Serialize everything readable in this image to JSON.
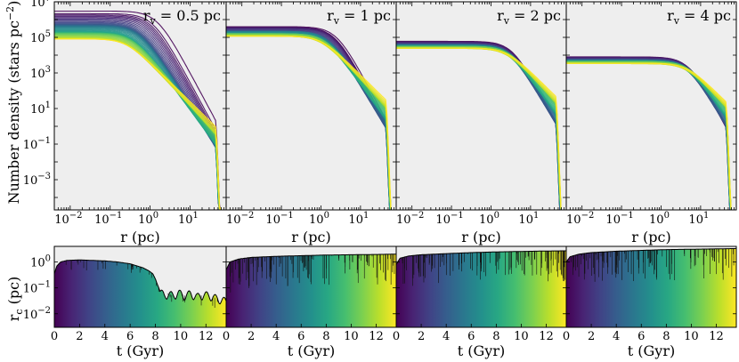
{
  "figure": {
    "top_ylabel": "Number density (stars pc",
    "top_ylabel_sup": "−2",
    "top_ylabel_end": ")",
    "bottom_ylabel": "r",
    "bottom_ylabel_sub": "c",
    "bottom_ylabel_end": " (pc)"
  },
  "chart_data": [
    {
      "type": "line",
      "panel": "top",
      "title_base": "r",
      "title_sub": "v",
      "title_value": " = 0.5 pc",
      "xlabel": "r (pc)",
      "xscale": "log",
      "xlim": [
        0.004,
        80
      ],
      "yscale": "log",
      "ylim": [
        2e-05,
        10000000
      ],
      "xticks": [
        {
          "v": 0.01,
          "b": "10",
          "e": "−2"
        },
        {
          "v": 0.1,
          "b": "10",
          "e": "−1"
        },
        {
          "v": 1,
          "b": "10",
          "e": "0"
        },
        {
          "v": 10,
          "b": "10",
          "e": "1"
        }
      ],
      "yticks": [
        {
          "v": 0.001,
          "b": "10",
          "e": "−3"
        },
        {
          "v": 0.1,
          "b": "10",
          "e": "−1"
        },
        {
          "v": 10,
          "b": "10",
          "e": "1"
        },
        {
          "v": 1000,
          "b": "10",
          "e": "3"
        },
        {
          "v": 100000,
          "b": "10",
          "e": "5"
        },
        {
          "v": 10000000,
          "b": "10",
          "e": "7"
        }
      ],
      "series_summary": {
        "colormap": "viridis",
        "early_core_density": 3000000,
        "late_core_density": 80000,
        "early_core_radius_pc": 1.5,
        "late_core_radius_pc": 0.25,
        "tidal_radius_pc": 55
      }
    },
    {
      "type": "line",
      "panel": "top",
      "title_base": "r",
      "title_sub": "v",
      "title_value": " = 1 pc",
      "xlabel": "r (pc)",
      "xscale": "log",
      "xlim": [
        0.004,
        80
      ],
      "yscale": "log",
      "ylim": [
        2e-05,
        10000000
      ],
      "xticks": [
        {
          "v": 0.01,
          "b": "10",
          "e": "−2"
        },
        {
          "v": 0.1,
          "b": "10",
          "e": "−1"
        },
        {
          "v": 1,
          "b": "10",
          "e": "0"
        },
        {
          "v": 10,
          "b": "10",
          "e": "1"
        }
      ],
      "yticks": [
        {
          "v": 0.001
        },
        {
          "v": 0.1
        },
        {
          "v": 10
        },
        {
          "v": 1000
        },
        {
          "v": 100000
        },
        {
          "v": 10000000
        }
      ],
      "series_summary": {
        "colormap": "viridis",
        "early_core_density": 400000,
        "late_core_density": 120000,
        "early_core_radius_pc": 2.5,
        "late_core_radius_pc": 1.0,
        "tidal_radius_pc": 55
      }
    },
    {
      "type": "line",
      "panel": "top",
      "title_base": "r",
      "title_sub": "v",
      "title_value": " = 2 pc",
      "xlabel": "r (pc)",
      "xscale": "log",
      "xlim": [
        0.004,
        80
      ],
      "yscale": "log",
      "ylim": [
        2e-05,
        10000000
      ],
      "xticks": [
        {
          "v": 0.01,
          "b": "10",
          "e": "−2"
        },
        {
          "v": 0.1,
          "b": "10",
          "e": "−1"
        },
        {
          "v": 1,
          "b": "10",
          "e": "0"
        },
        {
          "v": 10,
          "b": "10",
          "e": "1"
        }
      ],
      "yticks": [
        {
          "v": 0.001
        },
        {
          "v": 0.1
        },
        {
          "v": 10
        },
        {
          "v": 1000
        },
        {
          "v": 100000
        },
        {
          "v": 10000000
        }
      ],
      "series_summary": {
        "colormap": "viridis",
        "early_core_density": 60000,
        "late_core_density": 25000,
        "early_core_radius_pc": 3.5,
        "late_core_radius_pc": 2.5,
        "tidal_radius_pc": 55
      }
    },
    {
      "type": "line",
      "panel": "top",
      "title_base": "r",
      "title_sub": "v",
      "title_value": " = 4 pc",
      "xlabel": "r (pc)",
      "xscale": "log",
      "xlim": [
        0.004,
        80
      ],
      "yscale": "log",
      "ylim": [
        2e-05,
        10000000
      ],
      "xticks": [
        {
          "v": 0.01,
          "b": "10",
          "e": "−2"
        },
        {
          "v": 0.1,
          "b": "10",
          "e": "−1"
        },
        {
          "v": 1,
          "b": "10",
          "e": "0"
        },
        {
          "v": 10,
          "b": "10",
          "e": "1"
        }
      ],
      "yticks": [
        {
          "v": 0.001
        },
        {
          "v": 0.1
        },
        {
          "v": 10
        },
        {
          "v": 1000
        },
        {
          "v": 100000
        },
        {
          "v": 10000000
        }
      ],
      "series_summary": {
        "colormap": "viridis",
        "early_core_density": 8000,
        "late_core_density": 3500,
        "early_core_radius_pc": 5,
        "late_core_radius_pc": 4.5,
        "tidal_radius_pc": 55
      }
    },
    {
      "type": "line",
      "panel": "bottom",
      "xlabel": "t (Gyr)",
      "xlim": [
        0,
        13.6
      ],
      "yscale": "log",
      "ylim": [
        0.003,
        4
      ],
      "xticks": [
        0,
        2,
        4,
        6,
        8,
        10,
        12
      ],
      "yticks": [
        {
          "v": 0.01,
          "b": "10",
          "e": "−2"
        },
        {
          "v": 0.1,
          "b": "10",
          "e": "−1"
        },
        {
          "v": 1,
          "b": "10",
          "e": "0"
        }
      ],
      "background": "viridis-gradient-over-time",
      "rc_t": [
        0,
        0.2,
        0.5,
        1,
        2,
        3,
        4,
        5,
        6,
        7,
        7.5,
        7.8,
        8.0,
        8.2,
        8.4,
        8.7,
        9.0,
        9.4,
        9.8,
        10.3,
        10.8,
        11.3,
        11.8,
        12.3,
        12.8,
        13.2,
        13.6
      ],
      "rc_values": [
        0.35,
        0.7,
        1.0,
        1.15,
        1.2,
        1.15,
        1.1,
        1.0,
        0.85,
        0.6,
        0.45,
        0.35,
        0.22,
        0.12,
        0.07,
        0.05,
        0.06,
        0.05,
        0.065,
        0.05,
        0.06,
        0.045,
        0.055,
        0.05,
        0.04,
        0.035,
        0.03
      ]
    },
    {
      "type": "line",
      "panel": "bottom",
      "xlabel": "t (Gyr)",
      "xlim": [
        0,
        13.6
      ],
      "yscale": "log",
      "ylim": [
        0.003,
        4
      ],
      "xticks": [
        0,
        2,
        4,
        6,
        8,
        10,
        12
      ],
      "yticks": [
        {
          "v": 0.01
        },
        {
          "v": 0.1
        },
        {
          "v": 1
        }
      ],
      "background": "viridis-gradient-over-time",
      "rc_t": [
        0,
        0.3,
        1,
        2,
        4,
        6,
        8,
        10,
        12,
        13.6
      ],
      "rc_values": [
        0.5,
        1.0,
        1.3,
        1.5,
        1.65,
        1.75,
        1.85,
        1.9,
        1.95,
        2.0
      ]
    },
    {
      "type": "line",
      "panel": "bottom",
      "xlabel": "t (Gyr)",
      "xlim": [
        0,
        13.6
      ],
      "yscale": "log",
      "ylim": [
        0.003,
        4
      ],
      "xticks": [
        0,
        2,
        4,
        6,
        8,
        10,
        12
      ],
      "yticks": [
        {
          "v": 0.01
        },
        {
          "v": 0.1
        },
        {
          "v": 1
        }
      ],
      "background": "viridis-gradient-over-time",
      "rc_t": [
        0,
        0.3,
        1,
        2,
        4,
        6,
        8,
        10,
        12,
        13.6
      ],
      "rc_values": [
        0.8,
        1.4,
        1.7,
        1.9,
        2.1,
        2.3,
        2.45,
        2.55,
        2.65,
        2.7
      ]
    },
    {
      "type": "line",
      "panel": "bottom",
      "xlabel": "t (Gyr)",
      "xlim": [
        0,
        13.6
      ],
      "yscale": "log",
      "ylim": [
        0.003,
        4
      ],
      "xticks": [
        0,
        2,
        4,
        6,
        8,
        10,
        12
      ],
      "yticks": [
        {
          "v": 0.01
        },
        {
          "v": 0.1
        },
        {
          "v": 1
        }
      ],
      "background": "viridis-gradient-over-time",
      "rc_t": [
        0,
        0.3,
        1,
        2,
        4,
        6,
        8,
        10,
        12,
        13.6
      ],
      "rc_values": [
        1.0,
        1.6,
        2.0,
        2.3,
        2.6,
        2.8,
        3.0,
        3.1,
        3.2,
        3.3
      ]
    }
  ]
}
